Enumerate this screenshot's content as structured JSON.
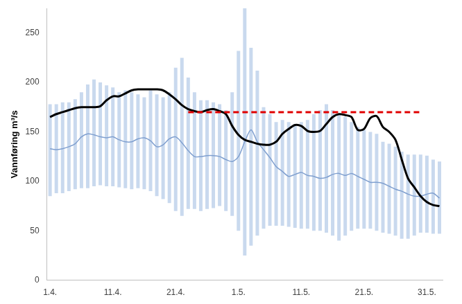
{
  "chart_data": {
    "type": "line",
    "y_label": "Vannføring m³/s",
    "categories": [
      "1.4.",
      null,
      null,
      null,
      null,
      null,
      null,
      null,
      null,
      null,
      "11.4.",
      null,
      null,
      null,
      null,
      null,
      null,
      null,
      null,
      null,
      "21.4.",
      null,
      null,
      null,
      null,
      null,
      null,
      null,
      null,
      null,
      "1.5.",
      null,
      null,
      null,
      null,
      null,
      null,
      null,
      null,
      null,
      "11.5.",
      null,
      null,
      null,
      null,
      null,
      null,
      null,
      null,
      null,
      "21.5.",
      null,
      null,
      null,
      null,
      null,
      null,
      null,
      null,
      null,
      "31.5.",
      null,
      null
    ],
    "ylim": [
      0,
      275
    ],
    "yticks": [
      0,
      50,
      100,
      150,
      200,
      250
    ],
    "grid": false,
    "series": [
      {
        "type": "bar",
        "color": "#c9d9ee",
        "low": [
          85,
          88,
          88,
          90,
          92,
          93,
          93,
          95,
          96,
          95,
          95,
          94,
          93,
          92,
          93,
          92,
          90,
          85,
          82,
          78,
          70,
          65,
          72,
          72,
          70,
          72,
          73,
          75,
          70,
          65,
          50,
          25,
          35,
          45,
          52,
          55,
          55,
          55,
          54,
          53,
          52,
          52,
          50,
          50,
          48,
          45,
          40,
          45,
          50,
          52,
          52,
          52,
          50,
          48,
          47,
          45,
          42,
          42,
          45,
          48,
          48,
          47,
          47
        ],
        "high": [
          178,
          178,
          180,
          180,
          183,
          190,
          198,
          203,
          200,
          197,
          195,
          190,
          192,
          190,
          188,
          185,
          192,
          188,
          185,
          190,
          215,
          225,
          205,
          190,
          182,
          182,
          180,
          178,
          172,
          190,
          232,
          275,
          235,
          212,
          175,
          168,
          160,
          162,
          160,
          158,
          160,
          162,
          168,
          172,
          178,
          172,
          168,
          165,
          160,
          155,
          152,
          150,
          148,
          140,
          138,
          135,
          130,
          127,
          127,
          127,
          126,
          122,
          120
        ]
      },
      {
        "type": "line",
        "color": "#7f9fcf",
        "line_style": "solid",
        "values": [
          133,
          132,
          133,
          135,
          138,
          145,
          148,
          147,
          145,
          144,
          145,
          142,
          140,
          140,
          143,
          144,
          141,
          135,
          137,
          143,
          145,
          139,
          131,
          125,
          125,
          126,
          126,
          125,
          122,
          120,
          125,
          140,
          152,
          140,
          132,
          124,
          115,
          110,
          105,
          107,
          109,
          106,
          105,
          103,
          104,
          107,
          108,
          106,
          108,
          105,
          102,
          99,
          99,
          98,
          95,
          92,
          90,
          87,
          85,
          85,
          87,
          88,
          83
        ]
      },
      {
        "type": "line",
        "color": "#e00000",
        "line_style": "dashed",
        "values": [
          null,
          null,
          null,
          null,
          null,
          null,
          null,
          null,
          null,
          null,
          null,
          null,
          null,
          null,
          null,
          null,
          null,
          null,
          null,
          null,
          null,
          null,
          170,
          170,
          170,
          170,
          170,
          170,
          170,
          170,
          170,
          170,
          170,
          170,
          170,
          170,
          170,
          170,
          170,
          170,
          170,
          170,
          170,
          170,
          170,
          170,
          170,
          170,
          170,
          170,
          170,
          170,
          170,
          170,
          170,
          170,
          170,
          170,
          170,
          170,
          null,
          null,
          null
        ]
      },
      {
        "type": "line",
        "color": "#000000",
        "line_style": "solid",
        "values": [
          165,
          168,
          170,
          172,
          174,
          175,
          175,
          175,
          176,
          182,
          186,
          186,
          189,
          192,
          193,
          193,
          193,
          193,
          192,
          188,
          183,
          177,
          173,
          171,
          170,
          172,
          173,
          171,
          168,
          156,
          147,
          142,
          140,
          138,
          137,
          137,
          140,
          148,
          153,
          157,
          156,
          151,
          150,
          151,
          158,
          165,
          168,
          167,
          165,
          152,
          153,
          164,
          166,
          155,
          150,
          142,
          122,
          103,
          94,
          85,
          79,
          76,
          75
        ]
      }
    ]
  }
}
